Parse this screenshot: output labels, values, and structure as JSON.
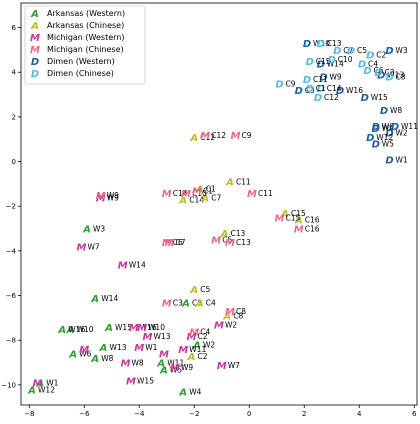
{
  "chart_data": {
    "type": "scatter",
    "title": "",
    "xlabel": "",
    "ylabel": "",
    "xlim": [
      -8.3,
      6.1
    ],
    "ylim": [
      -10.9,
      7.1
    ],
    "xticks": [
      -8,
      -6,
      -4,
      -2,
      0,
      2,
      4,
      6
    ],
    "yticks": [
      -10,
      -8,
      -6,
      -4,
      -2,
      0,
      2,
      4,
      6
    ],
    "grid": false,
    "legend_position": "top-left",
    "series": [
      {
        "name": "Arkansas (Western)",
        "marker": "A",
        "color": "#2ca02c",
        "points": [
          {
            "x": -7.6,
            "y": -9.9,
            "label": "W1"
          },
          {
            "x": -6.4,
            "y": -8.6,
            "label": "W6"
          },
          {
            "x": -5.6,
            "y": -8.8,
            "label": "W8"
          },
          {
            "x": -6.5,
            "y": -7.5,
            "label": "W10"
          },
          {
            "x": -6.8,
            "y": -7.5,
            "label": "W16"
          },
          {
            "x": -7.9,
            "y": -10.2,
            "label": "W12"
          },
          {
            "x": -5.3,
            "y": -8.3,
            "label": "W13"
          },
          {
            "x": -5.1,
            "y": -7.4,
            "label": "W15"
          },
          {
            "x": -5.6,
            "y": -6.1,
            "label": "W14"
          },
          {
            "x": -5.9,
            "y": -3.0,
            "label": "W3"
          },
          {
            "x": -3.1,
            "y": -9.3,
            "label": "W5"
          },
          {
            "x": -2.4,
            "y": -10.3,
            "label": "W4"
          },
          {
            "x": -3.2,
            "y": -9.0,
            "label": "W11"
          },
          {
            "x": -1.9,
            "y": -8.2,
            "label": "W2"
          },
          {
            "x": -2.3,
            "y": -6.3,
            "label": "C3"
          }
        ]
      },
      {
        "name": "Arkansas (Chinese)",
        "marker": "A",
        "color": "#bcbd22",
        "points": [
          {
            "x": -2.0,
            "y": 1.1,
            "label": "C12"
          },
          {
            "x": -1.8,
            "y": -1.2,
            "label": "C1"
          },
          {
            "x": -2.4,
            "y": -1.7,
            "label": "C14"
          },
          {
            "x": -1.6,
            "y": -1.6,
            "label": "C7"
          },
          {
            "x": -0.7,
            "y": -0.9,
            "label": "C11"
          },
          {
            "x": -1.8,
            "y": -6.3,
            "label": "C4"
          },
          {
            "x": -2.0,
            "y": -5.7,
            "label": "C5"
          },
          {
            "x": -0.9,
            "y": -3.2,
            "label": "C13"
          },
          {
            "x": 1.3,
            "y": -2.3,
            "label": "C15"
          },
          {
            "x": -2.1,
            "y": -8.7,
            "label": "C2"
          },
          {
            "x": -0.8,
            "y": -6.9,
            "label": "C8"
          },
          {
            "x": 1.8,
            "y": -2.6,
            "label": "C16"
          }
        ]
      },
      {
        "name": "Michigan (Western)",
        "marker": "M",
        "color": "#c2399f",
        "points": [
          {
            "x": -7.7,
            "y": -9.9,
            "label": ""
          },
          {
            "x": -6.0,
            "y": -8.4,
            "label": ""
          },
          {
            "x": -4.0,
            "y": -8.3,
            "label": "W1"
          },
          {
            "x": -4.2,
            "y": -7.4,
            "label": "W16"
          },
          {
            "x": -3.9,
            "y": -7.4,
            "label": "W10"
          },
          {
            "x": -3.7,
            "y": -7.8,
            "label": "W13"
          },
          {
            "x": -4.5,
            "y": -9.0,
            "label": "W8"
          },
          {
            "x": -4.3,
            "y": -9.8,
            "label": "W15"
          },
          {
            "x": -2.7,
            "y": -9.2,
            "label": "W9"
          },
          {
            "x": -2.4,
            "y": -8.4,
            "label": "W11"
          },
          {
            "x": -3.1,
            "y": -8.6,
            "label": ""
          },
          {
            "x": -5.4,
            "y": -1.6,
            "label": "W9"
          },
          {
            "x": -6.1,
            "y": -3.8,
            "label": "W7"
          },
          {
            "x": -4.6,
            "y": -4.6,
            "label": "W14"
          },
          {
            "x": -1.1,
            "y": -7.3,
            "label": "W2"
          },
          {
            "x": -1.0,
            "y": -9.1,
            "label": "W7"
          },
          {
            "x": -2.1,
            "y": -7.8,
            "label": "C2"
          }
        ]
      },
      {
        "name": "Michigan (Chinese)",
        "marker": "M",
        "color": "#e8688a",
        "points": [
          {
            "x": -1.6,
            "y": 1.2,
            "label": "C12"
          },
          {
            "x": -0.5,
            "y": 1.2,
            "label": "C9"
          },
          {
            "x": -3.0,
            "y": -1.4,
            "label": "C14"
          },
          {
            "x": -2.3,
            "y": -1.4,
            "label": "C10"
          },
          {
            "x": -1.9,
            "y": -1.3,
            "label": "C1"
          },
          {
            "x": 0.1,
            "y": -1.4,
            "label": "C11"
          },
          {
            "x": -5.4,
            "y": -1.5,
            "label": "W9"
          },
          {
            "x": -1.2,
            "y": -3.5,
            "label": "C5"
          },
          {
            "x": -3.0,
            "y": -3.6,
            "label": "C6"
          },
          {
            "x": -2.9,
            "y": -3.6,
            "label": "C7"
          },
          {
            "x": -0.7,
            "y": -3.6,
            "label": "C13"
          },
          {
            "x": -3.0,
            "y": -6.3,
            "label": "C3"
          },
          {
            "x": -0.7,
            "y": -6.7,
            "label": "C8"
          },
          {
            "x": -2.0,
            "y": -7.6,
            "label": "C4"
          },
          {
            "x": 1.8,
            "y": -3.0,
            "label": "C16"
          },
          {
            "x": 1.1,
            "y": -2.5,
            "label": "C15"
          }
        ]
      },
      {
        "name": "Dimen (Western)",
        "marker": "D",
        "color": "#1f5f9f",
        "points": [
          {
            "x": 4.6,
            "y": 1.6,
            "label": "W6"
          },
          {
            "x": 4.6,
            "y": 1.5,
            "label": "W4"
          },
          {
            "x": 5.3,
            "y": 1.6,
            "label": "W11"
          },
          {
            "x": 5.1,
            "y": 1.3,
            "label": "W2"
          },
          {
            "x": 4.4,
            "y": 1.1,
            "label": "W12"
          },
          {
            "x": 4.6,
            "y": 0.8,
            "label": "W5"
          },
          {
            "x": 4.9,
            "y": 2.3,
            "label": "W8"
          },
          {
            "x": 5.1,
            "y": 0.1,
            "label": "W1"
          },
          {
            "x": 3.3,
            "y": 3.2,
            "label": "W16"
          },
          {
            "x": 4.2,
            "y": 2.9,
            "label": "W15"
          },
          {
            "x": 2.1,
            "y": 5.3,
            "label": "W10"
          },
          {
            "x": 2.6,
            "y": 4.4,
            "label": "W14"
          },
          {
            "x": 2.7,
            "y": 3.8,
            "label": "W9"
          },
          {
            "x": 5.1,
            "y": 5.0,
            "label": "W3"
          },
          {
            "x": 4.8,
            "y": 3.9,
            "label": "W13"
          },
          {
            "x": 1.8,
            "y": 3.2,
            "label": "C3"
          }
        ]
      },
      {
        "name": "Dimen (Chinese)",
        "marker": "D",
        "color": "#5bb8e3",
        "points": [
          {
            "x": 2.6,
            "y": 5.3,
            "label": "C13"
          },
          {
            "x": 3.2,
            "y": 5.0,
            "label": "C7"
          },
          {
            "x": 3.7,
            "y": 5.0,
            "label": "C5"
          },
          {
            "x": 2.2,
            "y": 4.5,
            "label": "C15"
          },
          {
            "x": 3.0,
            "y": 4.6,
            "label": "C10"
          },
          {
            "x": 4.1,
            "y": 4.4,
            "label": "C4"
          },
          {
            "x": 4.3,
            "y": 4.1,
            "label": "C6"
          },
          {
            "x": 4.4,
            "y": 4.8,
            "label": "C2"
          },
          {
            "x": 4.7,
            "y": 4.0,
            "label": "C3"
          },
          {
            "x": 5.1,
            "y": 3.8,
            "label": "C8"
          },
          {
            "x": 2.1,
            "y": 3.7,
            "label": "C11"
          },
          {
            "x": 1.1,
            "y": 3.5,
            "label": "C9"
          },
          {
            "x": 2.6,
            "y": 3.3,
            "label": "C14"
          },
          {
            "x": 2.5,
            "y": 2.9,
            "label": "C12"
          },
          {
            "x": 2.2,
            "y": 3.3,
            "label": "C1"
          }
        ]
      }
    ]
  }
}
